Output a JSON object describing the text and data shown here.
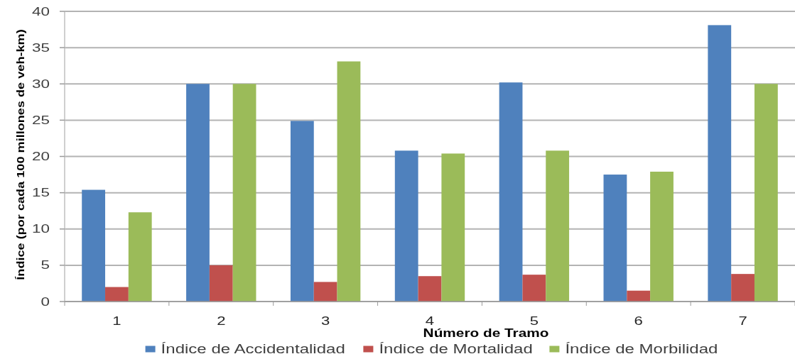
{
  "chart_data": {
    "type": "bar",
    "ylabel": "Índice (por cada 100 millones de veh-km)",
    "xlabel": "Número de Tramo",
    "categories": [
      "1",
      "2",
      "3",
      "4",
      "5",
      "6",
      "7"
    ],
    "series": [
      {
        "name": "Índice de Accidentalidad",
        "color": "#4f81bd",
        "values": [
          15.4,
          30.0,
          24.9,
          20.8,
          30.2,
          17.5,
          38.1
        ]
      },
      {
        "name": "Índice de Mortalidad",
        "color": "#c0504d",
        "values": [
          2.0,
          5.0,
          2.7,
          3.5,
          3.7,
          1.5,
          3.8
        ]
      },
      {
        "name": "Índice de Morbilidad",
        "color": "#9bbb59",
        "values": [
          12.3,
          30.0,
          33.1,
          20.4,
          20.8,
          17.9,
          30.0
        ]
      }
    ],
    "ylim": [
      0,
      40
    ],
    "yticks": [
      0,
      5,
      10,
      15,
      20,
      25,
      30,
      35,
      40
    ],
    "grid": "y",
    "legend": "bottom"
  }
}
